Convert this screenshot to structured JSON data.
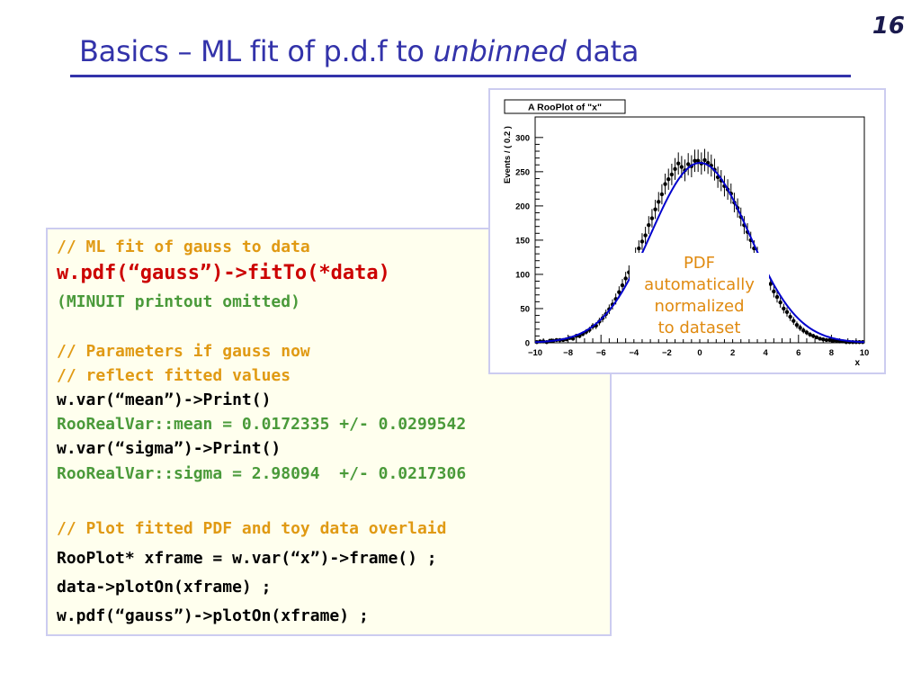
{
  "slide": {
    "page_number": "16",
    "title_prefix": "Basics – ML fit of p.d.f to ",
    "title_italic": "unbinned",
    "title_suffix": " data"
  },
  "code": {
    "lines": [
      {
        "text": "// ML fit of gauss to data",
        "style": "comment"
      },
      {
        "text": "w.pdf(“gauss”)->fitTo(*data)",
        "style": "red"
      },
      {
        "text": "(MINUIT printout omitted)",
        "style": "green"
      },
      {
        "text": "// Parameters if gauss now",
        "style": "comment"
      },
      {
        "text": "// reflect fitted values",
        "style": "comment"
      },
      {
        "text": "w.var(“mean”)->Print()",
        "style": "code"
      },
      {
        "text": "RooRealVar::mean = 0.0172335 +/- 0.0299542",
        "style": "green"
      },
      {
        "text": "w.var(“sigma”)->Print()",
        "style": "code"
      },
      {
        "text": "RooRealVar::sigma = 2.98094  +/- 0.0217306",
        "style": "green"
      },
      {
        "text": "// Plot fitted PDF and toy data overlaid",
        "style": "comment"
      },
      {
        "text": "RooPlot* xframe = w.var(“x”)->frame() ;",
        "style": "code"
      },
      {
        "text": "data->plotOn(xframe) ;",
        "style": "code"
      },
      {
        "text": "w.pdf(“gauss”)->plotOn(xframe) ;",
        "style": "code"
      }
    ]
  },
  "annotation": {
    "lines": [
      "PDF",
      "automatically",
      "normalized",
      "to dataset"
    ],
    "color": "#e08a10"
  },
  "colors": {
    "title": "#3333aa",
    "comment": "#e09a14",
    "highlight": "#cc0000",
    "output": "#4a9a3a",
    "curve": "#0000cc"
  },
  "chart_data": {
    "type": "scatter",
    "title": "A RooPlot of \"x\"",
    "xlabel": "x",
    "ylabel": "Events / ( 0.2 )",
    "xlim": [
      -10,
      10
    ],
    "ylim": [
      0,
      330
    ],
    "xticks": [
      "−10",
      "−8",
      "−6",
      "−4",
      "−2",
      "0",
      "2",
      "4",
      "6",
      "8",
      "10"
    ],
    "yticks": [
      "0",
      "50",
      "100",
      "150",
      "200",
      "250",
      "300"
    ],
    "fit": {
      "mean": 0.0172335,
      "sigma": 2.98094,
      "peak": 263
    },
    "series": [
      {
        "x": [
          -9.9,
          -9.7,
          -9.5,
          -9.3,
          -9.1,
          -8.9,
          -8.7,
          -8.5,
          -8.3,
          -8.1,
          -7.9,
          -7.7,
          -7.5,
          -7.3,
          -7.1,
          -6.9,
          -6.7,
          -6.5,
          -6.3,
          -6.1,
          -5.9,
          -5.7,
          -5.5,
          -5.3,
          -5.1,
          -4.9,
          -4.7,
          -4.5,
          -4.3,
          -4.1,
          -3.9,
          -3.7,
          -3.5,
          -3.3,
          -3.1,
          -2.9,
          -2.7,
          -2.5,
          -2.3,
          -2.1,
          -1.9,
          -1.7,
          -1.5,
          -1.3,
          -1.1,
          -0.9,
          -0.7,
          -0.5,
          -0.3,
          -0.1,
          0.1,
          0.3,
          0.5,
          0.7,
          0.9,
          1.1,
          1.3,
          1.5,
          1.7,
          1.9,
          2.1,
          2.3,
          2.5,
          2.7,
          2.9,
          3.1,
          3.3,
          3.5,
          3.7,
          3.9,
          4.1,
          4.3,
          4.5,
          4.7,
          4.9,
          5.1,
          5.3,
          5.5,
          5.7,
          5.9,
          6.1,
          6.3,
          6.5,
          6.7,
          6.9,
          7.1,
          7.3,
          7.5,
          7.7,
          7.9,
          8.1,
          8.3,
          8.5,
          8.7,
          8.9,
          9.1,
          9.3,
          9.5,
          9.7,
          9.9
        ],
        "y": [
          1,
          2,
          2,
          1,
          3,
          3,
          4,
          4,
          4,
          5,
          7,
          6,
          10,
          10,
          13,
          16,
          19,
          24,
          25,
          31,
          36,
          42,
          49,
          56,
          64,
          74,
          84,
          94,
          103,
          114,
          128,
          138,
          148,
          157,
          172,
          182,
          195,
          206,
          217,
          232,
          239,
          246,
          254,
          262,
          257,
          252,
          261,
          258,
          266,
          266,
          262,
          267,
          263,
          259,
          253,
          242,
          237,
          229,
          224,
          218,
          205,
          197,
          184,
          172,
          162,
          150,
          138,
          129,
          116,
          106,
          94,
          86,
          75,
          67,
          59,
          50,
          45,
          38,
          32,
          26,
          22,
          18,
          15,
          12,
          10,
          8,
          6,
          5,
          4,
          4,
          3,
          3,
          2,
          2,
          1,
          1,
          1,
          1,
          1,
          1
        ]
      }
    ]
  }
}
